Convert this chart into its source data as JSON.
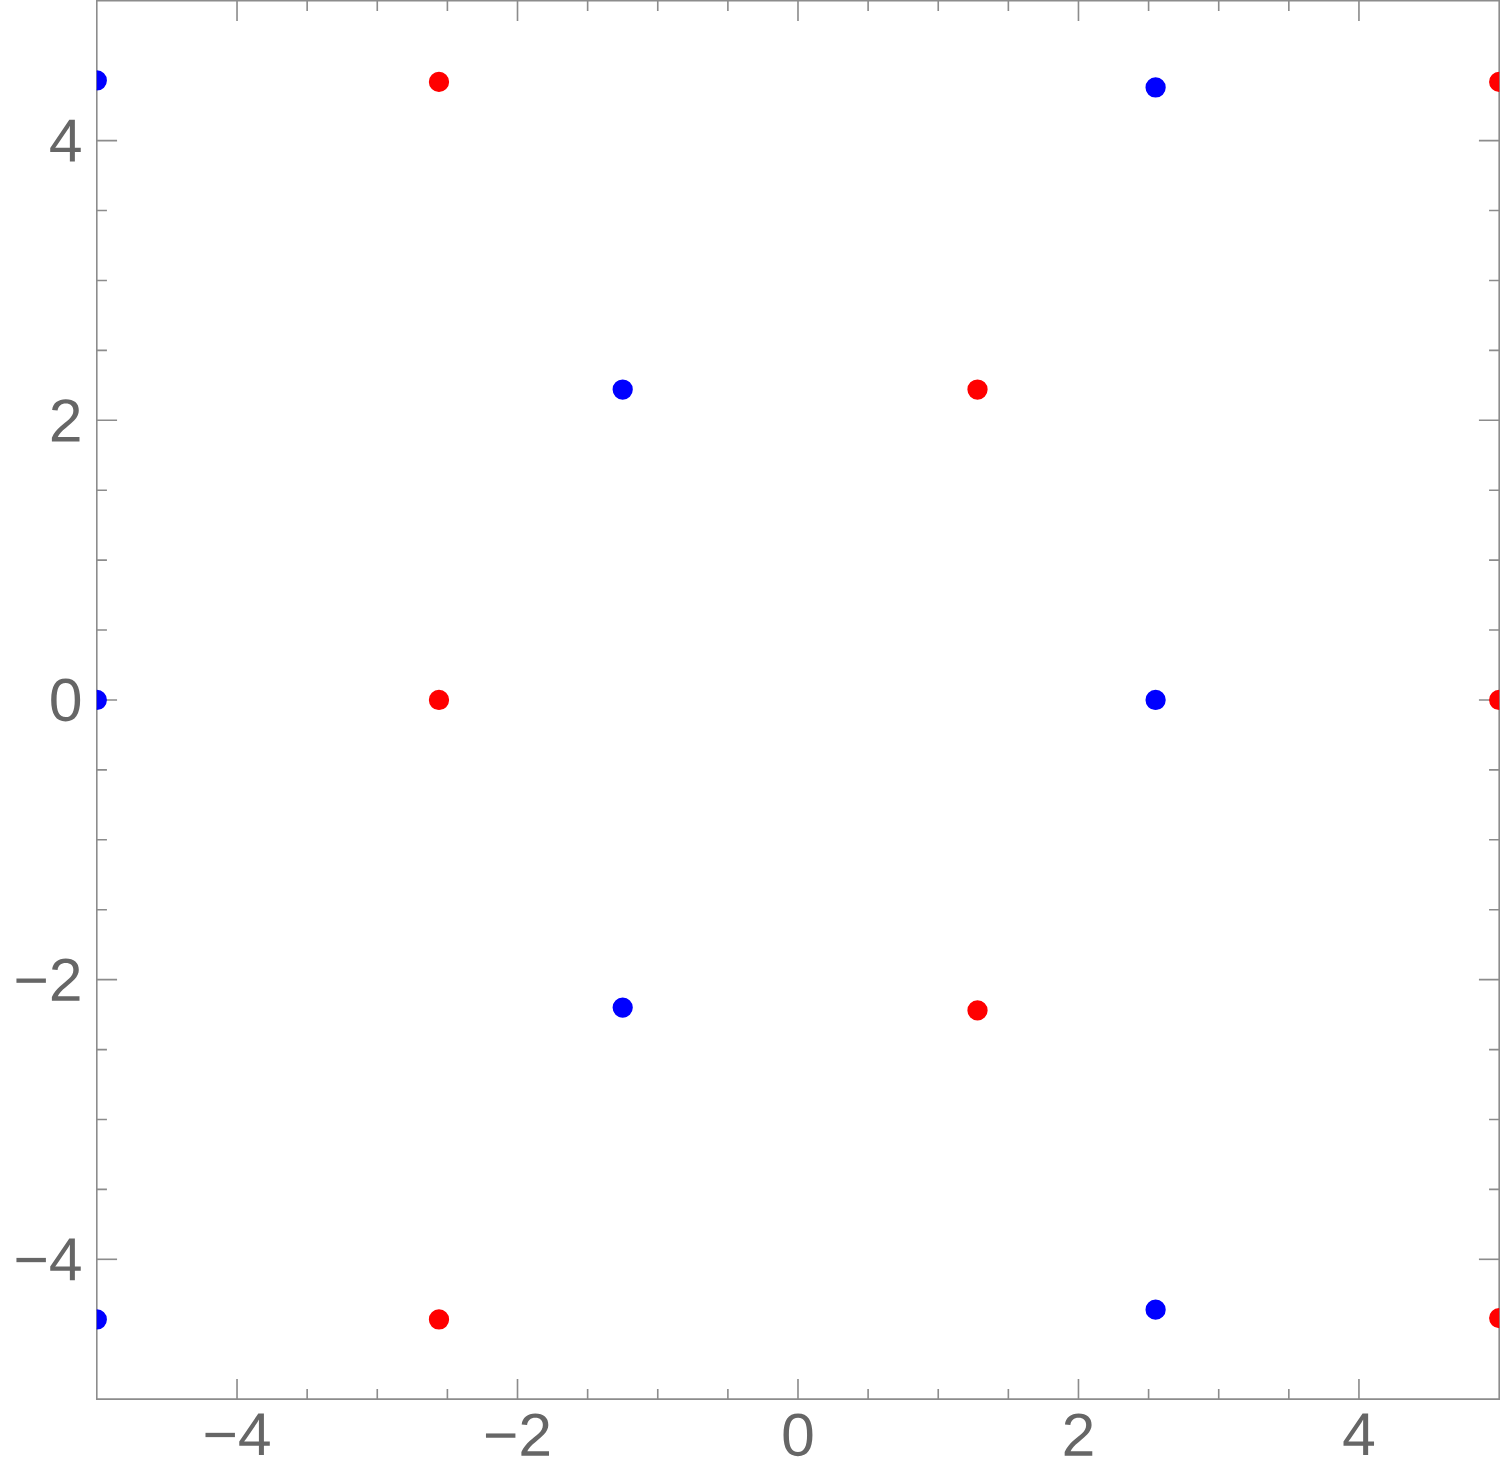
{
  "chart_data": {
    "type": "scatter",
    "marker": "circle",
    "grid": false,
    "xlim": [
      -5,
      5
    ],
    "ylim": [
      -5,
      5
    ],
    "xticks": [
      {
        "value": -4,
        "label": "−4"
      },
      {
        "value": -2,
        "label": "−2"
      },
      0,
      2,
      4
    ],
    "yticks": [
      {
        "value": -4,
        "label": "−4"
      },
      {
        "value": -2,
        "label": "−2"
      },
      0,
      2,
      4
    ],
    "series": [
      {
        "color": "#ff0000",
        "x": [
          -2.56,
          1.28,
          -2.56,
          1.28,
          -2.56,
          5,
          5,
          5
        ],
        "values": [
          4.42,
          2.22,
          0,
          -2.22,
          -4.43,
          4.42,
          0,
          -4.42
        ]
      },
      {
        "color": "#0000ff",
        "x": [
          -5,
          2.55,
          -1.25,
          -5,
          2.55,
          -1.25,
          -5,
          2.55
        ],
        "values": [
          4.43,
          4.38,
          2.22,
          0,
          0,
          -2.2,
          -4.43,
          -4.36
        ]
      }
    ]
  }
}
